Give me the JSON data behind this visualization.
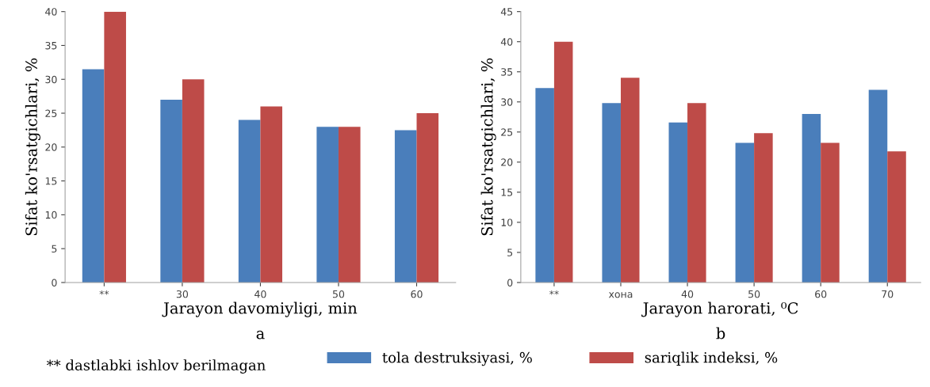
{
  "chart_data": [
    {
      "type": "bar",
      "xlabel": "Jarayon davomiyligi, min",
      "ylabel": "Sifat ko'rsatgichlari, %",
      "categories": [
        "**",
        "30",
        "40",
        "50",
        "60"
      ],
      "series": [
        {
          "color": "#4a7ebb",
          "values": [
            31.5,
            27,
            24,
            23,
            22.5
          ]
        },
        {
          "color": "#be4b48",
          "values": [
            40,
            30,
            26,
            23,
            25
          ]
        }
      ],
      "ylim": [
        0,
        40
      ],
      "yticks": [
        0,
        5,
        10,
        15,
        20,
        25,
        30,
        35,
        40
      ],
      "grid": false,
      "legend": false,
      "annotations": [
        "a",
        "** dastlabki ishlov berilmagan"
      ]
    },
    {
      "type": "bar",
      "xlabel": "Jarayon harorati, ⁰C",
      "ylabel": "Sifat ko'rsatgichlari, %",
      "categories": [
        "**",
        "хона",
        "40",
        "50",
        "60",
        "70"
      ],
      "series": [
        {
          "name": "tola destruksiyasi, %",
          "color": "#4a7ebb",
          "values": [
            32.3,
            29.8,
            26.6,
            23.2,
            28,
            32
          ]
        },
        {
          "name": "sariqlik indeksi, %",
          "color": "#be4b48",
          "values": [
            40,
            34,
            29.8,
            24.8,
            23.2,
            21.8
          ]
        }
      ],
      "ylim": [
        0,
        45
      ],
      "yticks": [
        0,
        5,
        10,
        15,
        20,
        25,
        30,
        35,
        40,
        45
      ],
      "grid": false,
      "legend": "bottom",
      "annotations": [
        "b"
      ]
    }
  ]
}
